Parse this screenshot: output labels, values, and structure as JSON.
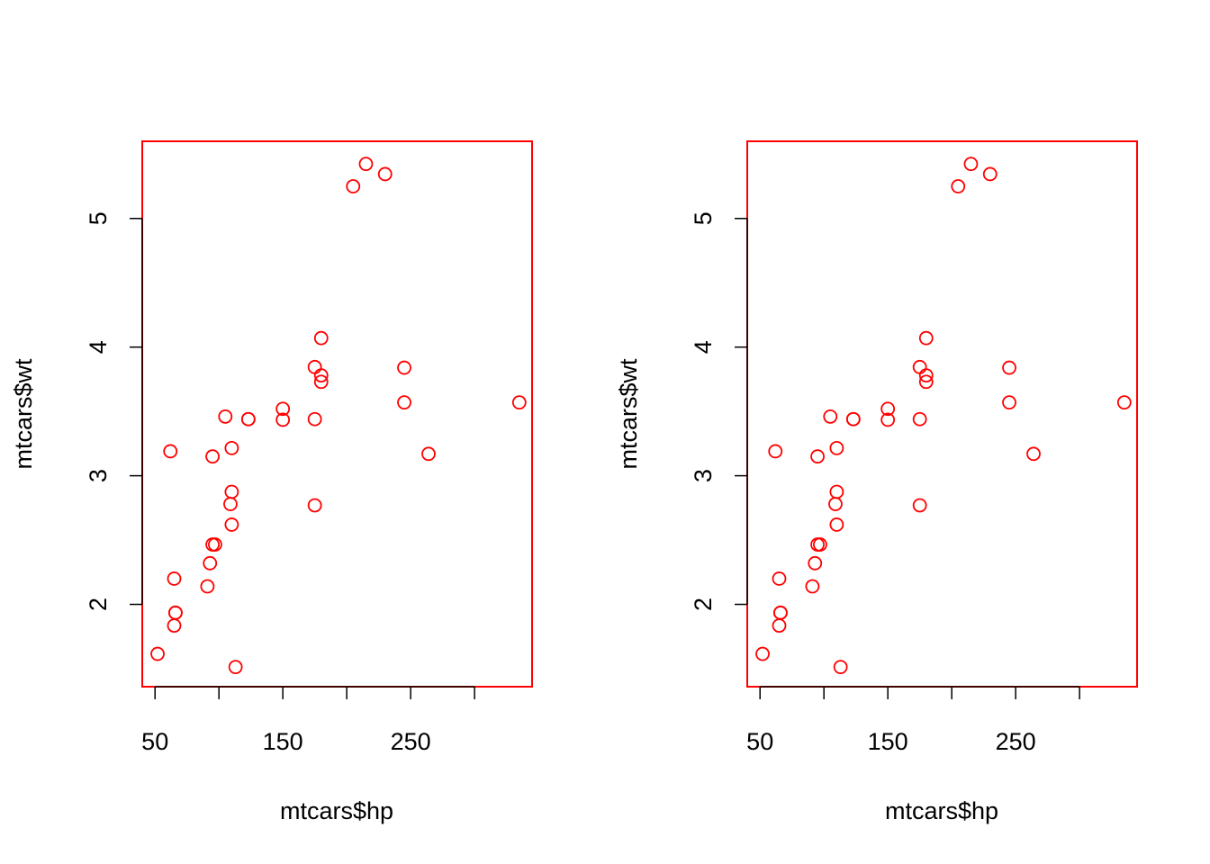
{
  "chart_data": [
    {
      "type": "scatter",
      "xlabel": "mtcars$hp",
      "ylabel": "mtcars$wt",
      "xlim": [
        40,
        345
      ],
      "ylim": [
        1.36,
        5.6
      ],
      "x_ticks": [
        50,
        100,
        150,
        200,
        250,
        300
      ],
      "x_tick_labels": [
        "50",
        "",
        "150",
        "",
        "250",
        ""
      ],
      "y_ticks": [
        2,
        3,
        4,
        5
      ],
      "y_tick_labels": [
        "2",
        "3",
        "4",
        "5"
      ],
      "grid": false,
      "point_color": "#ff0000",
      "series": [
        {
          "x": [
            52,
            62,
            65,
            65,
            66,
            66,
            91,
            93,
            95,
            95,
            97,
            105,
            109,
            110,
            110,
            110,
            113,
            123,
            123,
            150,
            150,
            175,
            175,
            175,
            180,
            180,
            180,
            205,
            215,
            230,
            245,
            245,
            264,
            335
          ],
          "y": [
            1.615,
            3.19,
            2.2,
            1.835,
            1.935,
            1.935,
            2.14,
            2.32,
            3.15,
            2.465,
            2.465,
            3.46,
            2.78,
            2.62,
            2.875,
            3.215,
            1.513,
            3.44,
            3.44,
            3.52,
            3.435,
            3.845,
            3.44,
            2.77,
            4.07,
            3.73,
            3.78,
            5.25,
            5.424,
            5.345,
            3.84,
            3.57,
            3.17,
            3.57
          ]
        }
      ]
    },
    {
      "type": "scatter",
      "xlabel": "mtcars$hp",
      "ylabel": "mtcars$wt",
      "xlim": [
        40,
        345
      ],
      "ylim": [
        1.36,
        5.6
      ],
      "x_ticks": [
        50,
        100,
        150,
        200,
        250,
        300
      ],
      "x_tick_labels": [
        "50",
        "",
        "150",
        "",
        "250",
        ""
      ],
      "y_ticks": [
        2,
        3,
        4,
        5
      ],
      "y_tick_labels": [
        "2",
        "3",
        "4",
        "5"
      ],
      "grid": false,
      "point_color": "#ff0000",
      "series": [
        {
          "x": [
            52,
            62,
            65,
            65,
            66,
            66,
            91,
            93,
            95,
            95,
            97,
            105,
            109,
            110,
            110,
            110,
            113,
            123,
            123,
            150,
            150,
            175,
            175,
            175,
            180,
            180,
            180,
            205,
            215,
            230,
            245,
            245,
            264,
            335
          ],
          "y": [
            1.615,
            3.19,
            2.2,
            1.835,
            1.935,
            1.935,
            2.14,
            2.32,
            3.15,
            2.465,
            2.465,
            3.46,
            2.78,
            2.62,
            2.875,
            3.215,
            1.513,
            3.44,
            3.44,
            3.52,
            3.435,
            3.845,
            3.44,
            2.77,
            4.07,
            3.73,
            3.78,
            5.25,
            5.424,
            5.345,
            3.84,
            3.57,
            3.17,
            3.57
          ]
        }
      ]
    }
  ]
}
